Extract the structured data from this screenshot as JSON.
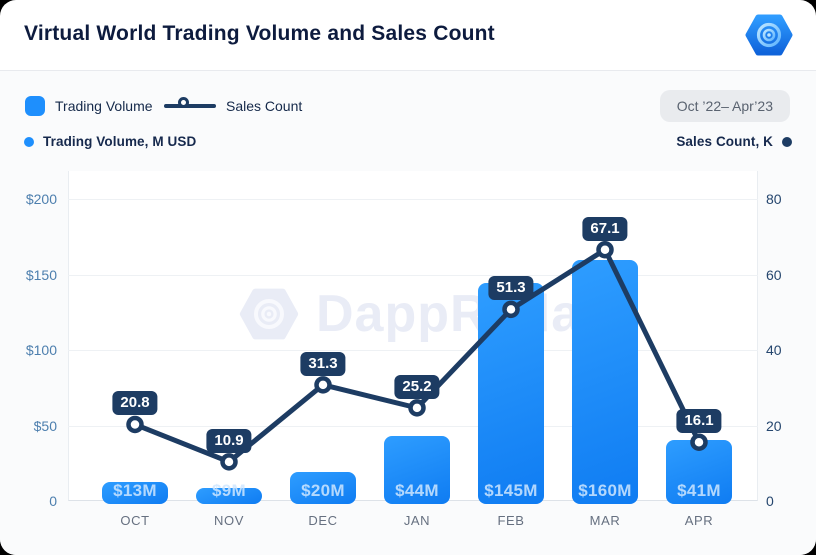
{
  "header": {
    "title": "Virtual World Trading Volume and Sales Count"
  },
  "legend": {
    "volume_label": "Trading Volume",
    "sales_label": "Sales Count",
    "range_badge": "Oct ’22– Apr’23"
  },
  "axes": {
    "left_title": "Trading Volume, M USD",
    "right_title": "Sales Count, K"
  },
  "chart_data": {
    "type": "combo",
    "title": "Virtual World Trading Volume and Sales Count",
    "categories": [
      "OCT",
      "NOV",
      "DEC",
      "JAN",
      "FEB",
      "MAR",
      "APR"
    ],
    "series": [
      {
        "name": "Trading Volume",
        "type": "bar",
        "unit": "M USD",
        "axis": "left",
        "values": [
          13,
          9,
          20,
          44,
          145,
          160,
          41
        ],
        "labels": [
          "$13M",
          "$9M",
          "$20M",
          "$44M",
          "$145M",
          "$160M",
          "$41M"
        ]
      },
      {
        "name": "Sales Count",
        "type": "line",
        "unit": "K",
        "axis": "right",
        "values": [
          20.8,
          10.9,
          31.3,
          25.2,
          51.3,
          67.1,
          16.1
        ],
        "labels": [
          "20.8",
          "10.9",
          "31.3",
          "25.2",
          "51.3",
          "67.1",
          "16.1"
        ]
      }
    ],
    "left_axis": {
      "ticks": [
        "$200",
        "$150",
        "$100",
        "$50",
        "0"
      ],
      "max": 200,
      "min": 0
    },
    "right_axis": {
      "ticks": [
        "80",
        "60",
        "40",
        "20",
        "0"
      ],
      "max": 80,
      "min": 0
    },
    "grid": "horizontal",
    "legend_position": "top-left",
    "watermark": "DappRadar",
    "colors": {
      "bar": "#1e8ffd",
      "line": "#1d3c63",
      "chip_bg": "#1d3c63",
      "chip_text": "#ffffff",
      "left_axis_text": "#4d7fae",
      "right_axis_text": "#25466e"
    }
  }
}
